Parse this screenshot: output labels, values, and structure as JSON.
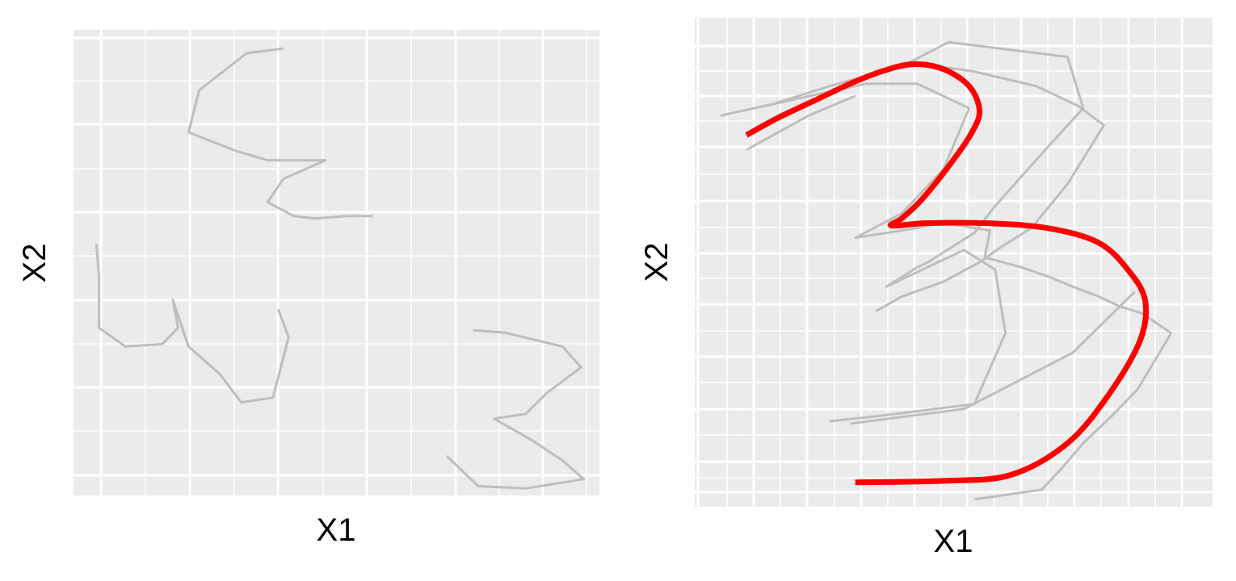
{
  "chart_data": [
    {
      "type": "line",
      "xlabel": "X1",
      "ylabel": "X2",
      "xlim": [
        0,
        100
      ],
      "ylim": [
        0,
        100
      ],
      "grid": true,
      "colors": {
        "panel": "#EBEBEB",
        "grid": "#FFFFFF",
        "series": "#BEBEBE"
      },
      "series": [
        {
          "points": [
            [
              40,
              96
            ],
            [
              33,
              95
            ],
            [
              24,
              87
            ],
            [
              22,
              78
            ],
            [
              31,
              74
            ],
            [
              37,
              72
            ],
            [
              48,
              72
            ],
            [
              40,
              68
            ],
            [
              37,
              63
            ],
            [
              42,
              60
            ],
            [
              46,
              59.5
            ],
            [
              52,
              60
            ],
            [
              57,
              60
            ]
          ]
        },
        {
          "points": [
            [
              4.5,
              54
            ],
            [
              5,
              47
            ],
            [
              5,
              36
            ],
            [
              10,
              32
            ],
            [
              17,
              32.5
            ],
            [
              20,
              36
            ],
            [
              19,
              42
            ],
            [
              22,
              32
            ],
            [
              28,
              26
            ],
            [
              32,
              20
            ],
            [
              38,
              21
            ],
            [
              41,
              34
            ],
            [
              39,
              40
            ]
          ]
        },
        {
          "points": [
            [
              76,
              35.5
            ],
            [
              82,
              35
            ],
            [
              93,
              32
            ],
            [
              96.5,
              27.5
            ],
            [
              90,
              22
            ],
            [
              86,
              17.5
            ],
            [
              80,
              16.5
            ],
            [
              87,
              12
            ],
            [
              93,
              7.5
            ],
            [
              97,
              3.5
            ],
            [
              86,
              1.5
            ],
            [
              77,
              2
            ],
            [
              71,
              8.5
            ]
          ]
        }
      ]
    },
    {
      "type": "line",
      "xlabel": "X1",
      "ylabel": "X2",
      "xlim": [
        0,
        100
      ],
      "ylim": [
        0,
        100
      ],
      "grid": true,
      "colors": {
        "panel": "#EBEBEB",
        "grid": "#FFFFFF",
        "series": "#BEBEBE",
        "highlight": "#FF0000"
      },
      "series": [
        {
          "points": [
            [
              5,
              80
            ],
            [
              33,
              86.5
            ],
            [
              43,
              86.5
            ],
            [
              53,
              81.5
            ],
            [
              48,
              69
            ],
            [
              40,
              60
            ],
            [
              31,
              55
            ],
            [
              40,
              56.5
            ],
            [
              48,
              58
            ],
            [
              57,
              56.5
            ],
            [
              56,
              51
            ],
            [
              63,
              49
            ],
            [
              68.5,
              47
            ],
            [
              73,
              45
            ],
            [
              78,
              43
            ],
            [
              82,
              41
            ],
            [
              86.5,
              39.5
            ],
            [
              92,
              35.5
            ],
            [
              85.5,
              24
            ],
            [
              80,
              18
            ],
            [
              75,
              13
            ],
            [
              71,
              8
            ],
            [
              67,
              3.5
            ],
            [
              54,
              1.5
            ]
          ]
        },
        {
          "points": [
            [
              14,
              82
            ],
            [
              26,
              86
            ],
            [
              36,
              89
            ],
            [
              44,
              90.5
            ],
            [
              54,
              89
            ],
            [
              66,
              86
            ],
            [
              74,
              82
            ],
            [
              79,
              78
            ],
            [
              72,
              66
            ],
            [
              65,
              57
            ],
            [
              59,
              53
            ],
            [
              55,
              50
            ],
            [
              48,
              46
            ],
            [
              40,
              43
            ],
            [
              35,
              40
            ]
          ]
        },
        {
          "points": [
            [
              39,
              89.5
            ],
            [
              49,
              95
            ],
            [
              72,
              92
            ],
            [
              75,
              81.5
            ],
            [
              66,
              71
            ],
            [
              58,
              61.5
            ],
            [
              54,
              56
            ],
            [
              45,
              50
            ],
            [
              43,
              49
            ],
            [
              37,
              45
            ],
            [
              52,
              52.5
            ],
            [
              58,
              48.5
            ],
            [
              60,
              35.5
            ],
            [
              54,
              21
            ],
            [
              35,
              18.5
            ],
            [
              26,
              17.5
            ]
          ]
        },
        {
          "points": [
            [
              30,
              17
            ],
            [
              52,
              20
            ],
            [
              73,
              31.5
            ],
            [
              85,
              44
            ]
          ]
        },
        {
          "points": [
            [
              10,
              73
            ],
            [
              22,
              80
            ],
            [
              31,
              84
            ]
          ]
        }
      ],
      "highlight": [
        [
          10,
          76
        ],
        [
          16,
          79.5
        ],
        [
          23,
          83
        ],
        [
          30,
          86.5
        ],
        [
          36,
          89
        ],
        [
          42,
          90.5
        ],
        [
          48,
          89.5
        ],
        [
          53,
          86
        ],
        [
          55,
          81
        ],
        [
          53.5,
          76.5
        ],
        [
          50,
          71
        ],
        [
          44,
          63
        ],
        [
          40,
          59
        ],
        [
          38,
          57.5
        ],
        [
          45,
          58
        ],
        [
          56,
          58
        ],
        [
          68,
          57
        ],
        [
          78,
          54
        ],
        [
          84,
          48
        ],
        [
          87,
          42
        ],
        [
          86,
          34
        ],
        [
          80,
          23
        ],
        [
          72,
          13
        ],
        [
          61,
          6.5
        ],
        [
          48,
          5.3
        ],
        [
          31,
          5
        ]
      ]
    }
  ]
}
